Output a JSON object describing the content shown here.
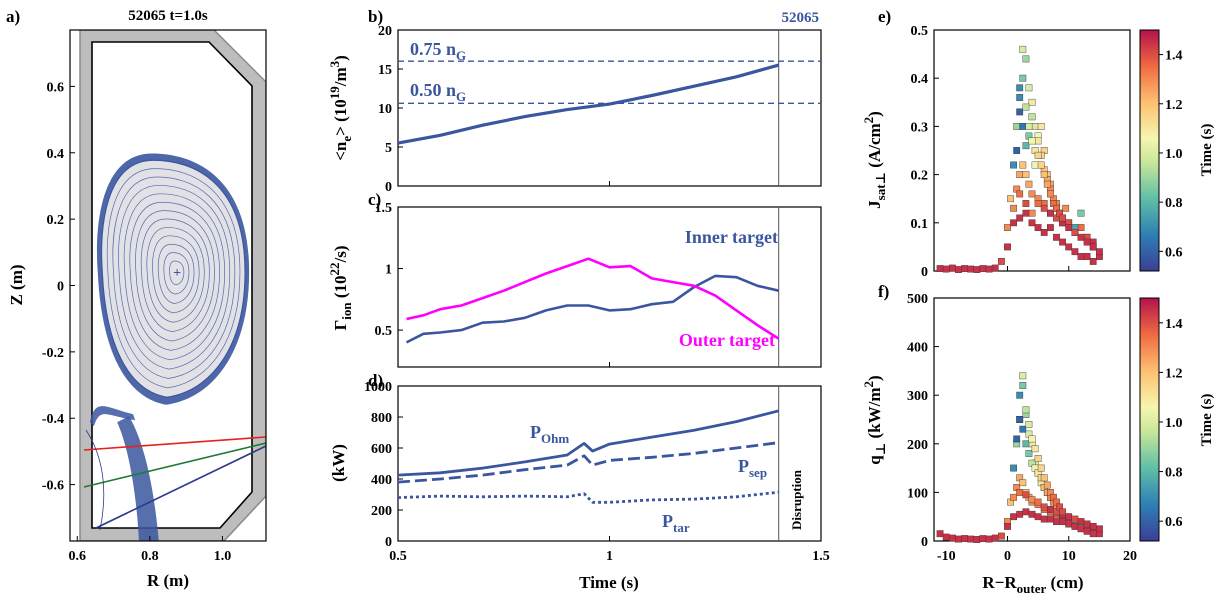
{
  "colors": {
    "blue": "#3b56a0",
    "magenta": "#ff00ff",
    "plasma_fill": "#e2e2e6",
    "wall_gray": "#bdbdbd",
    "line_red": "#e8211d",
    "line_green": "#1e7b33",
    "line_navy": "#2b3a8c"
  },
  "panels": {
    "a": {
      "label": "a)",
      "title": "52065 t=1.0s",
      "xlabel": "R (m)",
      "ylabel": "Z (m)",
      "xticks": [
        "0.6",
        "0.8",
        "1.0"
      ],
      "yticks": [
        "0.6",
        "0.4",
        "0.2",
        "0",
        "-0.2",
        "-0.4",
        "-0.6"
      ]
    },
    "b": {
      "label": "b)",
      "shot": "52065",
      "ylabel_main": "<n",
      "ylabel_sub": "e",
      "ylabel_rest": "> (10",
      "ylabel_sup": "19",
      "ylabel_unit": "/m",
      "ylabel_sup2": "3",
      "ylabel_end": ")",
      "ng075": "0.75 n",
      "ng050": "0.50 n",
      "ng_sub": "G",
      "yticks": [
        "0",
        "5",
        "10",
        "15",
        "20"
      ]
    },
    "c": {
      "label": "c)",
      "ylabel_main": "Γ",
      "ylabel_sub": "ion",
      "ylabel_rest": " (10",
      "ylabel_sup": "22",
      "ylabel_end": "/s)",
      "inner_label": "Inner target",
      "outer_label": "Outer target",
      "yticks": [
        "0.5",
        "1",
        "1.5"
      ]
    },
    "d": {
      "label": "d)",
      "ylabel": "(kW)",
      "pohm": "P",
      "pohm_sub": "Ohm",
      "psep": "P",
      "psep_sub": "sep",
      "ptar": "P",
      "ptar_sub": "tar",
      "disruption": "Disruption",
      "xlabel": "Time (s)",
      "yticks": [
        "0",
        "200",
        "400",
        "600",
        "800",
        "1000"
      ],
      "xticks": [
        "0.5",
        "1",
        "1.5"
      ]
    },
    "e": {
      "label": "e)",
      "ylabel_main": "J",
      "ylabel_sub": "sat⊥",
      "ylabel_rest": " (A/cm",
      "ylabel_sup": "2",
      "ylabel_end": ")",
      "yticks": [
        "0",
        "0.1",
        "0.2",
        "0.3",
        "0.4",
        "0.5"
      ],
      "cbar_label": "Time (s)",
      "cbar_ticks": [
        "0.6",
        "0.8",
        "1.0",
        "1.2",
        "1.4"
      ]
    },
    "f": {
      "label": "f)",
      "ylabel_main": "q",
      "ylabel_sub": "⊥",
      "ylabel_rest": " (kW/m",
      "ylabel_sup": "2",
      "ylabel_end": ")",
      "xlabel_main": "R−R",
      "xlabel_sub": "outer",
      "xlabel_end": " (cm)",
      "yticks": [
        "0",
        "100",
        "200",
        "300",
        "400",
        "500"
      ],
      "xticks": [
        "-10",
        "0",
        "10",
        "20"
      ],
      "cbar_label": "Time (s)",
      "cbar_ticks": [
        "0.6",
        "0.8",
        "1.0",
        "1.2",
        "1.4"
      ]
    }
  },
  "chart_data": [
    {
      "type": "diagram",
      "panel": "a",
      "xlim": [
        0.58,
        1.12
      ],
      "ylim": [
        -0.77,
        0.77
      ],
      "magnetic_axis": [
        0.875,
        0.04
      ],
      "x_point": [
        0.765,
        -0.4
      ]
    },
    {
      "type": "line",
      "panel": "b",
      "xlim": [
        0.5,
        1.5
      ],
      "ylim": [
        0,
        20
      ],
      "hlines": [
        {
          "name": "0.75 nG",
          "y": 16.0
        },
        {
          "name": "0.50 nG",
          "y": 10.6
        }
      ],
      "vline": 1.4,
      "x": [
        0.5,
        0.6,
        0.7,
        0.8,
        0.9,
        1.0,
        1.1,
        1.2,
        1.3,
        1.4
      ],
      "values": [
        5.5,
        6.5,
        7.8,
        8.9,
        9.8,
        10.5,
        11.6,
        12.8,
        14.0,
        15.5
      ]
    },
    {
      "type": "line",
      "panel": "c",
      "xlim": [
        0.5,
        1.5
      ],
      "ylim": [
        0.2,
        1.5
      ],
      "series": [
        {
          "name": "Inner target",
          "x": [
            0.52,
            0.56,
            0.6,
            0.65,
            0.7,
            0.75,
            0.8,
            0.85,
            0.9,
            0.95,
            1.0,
            1.05,
            1.1,
            1.15,
            1.2,
            1.25,
            1.3,
            1.35,
            1.4
          ],
          "values": [
            0.4,
            0.47,
            0.48,
            0.5,
            0.56,
            0.57,
            0.6,
            0.66,
            0.7,
            0.7,
            0.66,
            0.67,
            0.71,
            0.73,
            0.85,
            0.94,
            0.93,
            0.86,
            0.82
          ]
        },
        {
          "name": "Outer target",
          "x": [
            0.52,
            0.56,
            0.6,
            0.65,
            0.7,
            0.75,
            0.8,
            0.85,
            0.9,
            0.95,
            1.0,
            1.05,
            1.1,
            1.15,
            1.2,
            1.25,
            1.3,
            1.35,
            1.4
          ],
          "values": [
            0.59,
            0.62,
            0.67,
            0.7,
            0.76,
            0.82,
            0.89,
            0.96,
            1.02,
            1.08,
            1.01,
            1.02,
            0.92,
            0.89,
            0.86,
            0.78,
            0.66,
            0.54,
            0.43
          ]
        }
      ]
    },
    {
      "type": "line",
      "panel": "d",
      "xlim": [
        0.5,
        1.5
      ],
      "ylim": [
        0,
        1000
      ],
      "vline": 1.4,
      "series": [
        {
          "name": "P_Ohm",
          "x": [
            0.5,
            0.6,
            0.7,
            0.8,
            0.9,
            0.94,
            0.96,
            1.0,
            1.1,
            1.2,
            1.3,
            1.4
          ],
          "values": [
            425,
            440,
            470,
            510,
            555,
            630,
            580,
            625,
            670,
            715,
            770,
            840
          ]
        },
        {
          "name": "P_sep",
          "x": [
            0.5,
            0.6,
            0.7,
            0.8,
            0.9,
            0.94,
            0.96,
            1.0,
            1.1,
            1.2,
            1.3,
            1.4
          ],
          "values": [
            380,
            400,
            425,
            460,
            490,
            550,
            490,
            520,
            540,
            565,
            600,
            635
          ]
        },
        {
          "name": "P_tar",
          "x": [
            0.5,
            0.6,
            0.7,
            0.8,
            0.9,
            0.94,
            0.96,
            1.0,
            1.1,
            1.2,
            1.3,
            1.4
          ],
          "values": [
            280,
            290,
            285,
            290,
            285,
            305,
            250,
            250,
            265,
            270,
            285,
            315
          ]
        }
      ]
    },
    {
      "type": "scatter",
      "panel": "e",
      "xlim": [
        -12,
        20
      ],
      "ylim": [
        0,
        0.5
      ],
      "color_range": [
        0.52,
        1.5
      ],
      "x": [
        -11,
        -10,
        -9,
        -8,
        -7,
        -6,
        -5,
        -4,
        -3,
        -2,
        -1,
        0,
        0.5,
        1,
        1.5,
        2,
        2.5,
        3,
        3.5,
        4,
        4.5,
        5,
        5.5,
        6,
        6.5,
        7,
        7.5,
        8,
        8.5,
        9,
        9.5,
        10,
        11,
        12,
        13,
        14,
        15,
        1.5,
        2,
        2.5,
        3,
        3.5,
        4,
        4.5,
        5,
        5.5,
        6,
        6.5,
        7,
        1.5,
        2,
        2.5,
        3,
        3.5,
        4,
        5,
        6,
        7,
        8,
        9,
        10,
        11,
        12,
        13,
        14,
        1,
        2,
        3,
        4,
        5,
        6,
        7,
        8,
        9,
        10,
        11,
        12,
        13,
        14,
        15,
        2,
        2.5,
        3,
        3.5,
        4,
        4.5,
        5,
        5.5,
        6,
        6.5,
        7,
        7.5,
        8,
        8.5,
        9,
        0,
        1,
        2,
        3,
        4,
        5,
        6,
        7,
        8,
        9,
        10,
        11,
        12,
        13,
        14
      ],
      "values": [
        0.005,
        0.004,
        0.006,
        0.003,
        0.005,
        0.004,
        0.003,
        0.005,
        0.004,
        0.006,
        0.02,
        0.09,
        0.15,
        0.22,
        0.3,
        0.38,
        0.46,
        0.44,
        0.38,
        0.35,
        0.3,
        0.28,
        0.3,
        0.25,
        0.2,
        0.18,
        0.15,
        0.14,
        0.12,
        0.1,
        0.13,
        0.1,
        0.08,
        0.09,
        0.07,
        0.05,
        0.03,
        0.25,
        0.33,
        0.3,
        0.26,
        0.28,
        0.32,
        0.22,
        0.27,
        0.24,
        0.21,
        0.19,
        0.17,
        0.17,
        0.2,
        0.22,
        0.2,
        0.18,
        0.16,
        0.15,
        0.14,
        0.12,
        0.13,
        0.11,
        0.1,
        0.09,
        0.12,
        0.07,
        0.06,
        0.13,
        0.16,
        0.14,
        0.12,
        0.14,
        0.13,
        0.12,
        0.11,
        0.1,
        0.09,
        0.08,
        0.07,
        0.06,
        0.05,
        0.04,
        0.36,
        0.4,
        0.34,
        0.3,
        0.27,
        0.25,
        0.24,
        0.22,
        0.2,
        0.18,
        0.16,
        0.14,
        0.13,
        0.12,
        0.11,
        0.05,
        0.1,
        0.11,
        0.12,
        0.1,
        0.09,
        0.08,
        0.09,
        0.07,
        0.06,
        0.05,
        0.04,
        0.03,
        0.03,
        0.02
      ],
      "times": [
        1.45,
        1.45,
        1.45,
        1.45,
        1.45,
        1.45,
        1.45,
        1.45,
        1.45,
        1.45,
        1.4,
        1.3,
        1.2,
        0.7,
        0.9,
        0.7,
        1.0,
        0.9,
        1.0,
        1.1,
        1.0,
        1.05,
        1.1,
        1.15,
        1.2,
        1.25,
        1.3,
        1.3,
        1.35,
        1.35,
        1.3,
        1.4,
        1.4,
        1.35,
        0.7,
        1.45,
        1.45,
        0.6,
        0.6,
        0.65,
        0.8,
        0.85,
        0.95,
        1.05,
        1.1,
        1.15,
        1.2,
        1.25,
        1.3,
        1.3,
        1.25,
        1.2,
        1.2,
        1.25,
        1.3,
        1.3,
        1.35,
        1.35,
        1.4,
        1.4,
        1.4,
        0.75,
        0.85,
        1.4,
        1.45,
        1.3,
        1.35,
        1.4,
        1.3,
        1.35,
        1.4,
        1.45,
        1.4,
        1.45,
        1.45,
        1.4,
        1.45,
        1.45,
        1.45,
        1.45,
        0.7,
        0.85,
        0.95,
        1.0,
        1.05,
        1.1,
        1.15,
        1.15,
        1.2,
        1.25,
        1.3,
        1.35,
        1.35,
        1.4,
        1.4,
        1.45,
        1.45,
        1.45,
        1.45,
        1.45,
        1.45,
        1.45,
        1.45,
        1.45,
        1.45,
        1.45,
        1.45,
        1.45,
        1.45,
        1.45
      ]
    },
    {
      "type": "scatter",
      "panel": "f",
      "xlim": [
        -12,
        20
      ],
      "ylim": [
        0,
        500
      ],
      "color_range": [
        0.52,
        1.5
      ],
      "x": [
        -11,
        -10,
        -9,
        -8,
        -7,
        -6,
        -5,
        -4,
        -3,
        -2,
        -1,
        0,
        0.5,
        1,
        1.5,
        2,
        2.5,
        3,
        3.5,
        4,
        4.5,
        5,
        5.5,
        6,
        6.5,
        7,
        7.5,
        8,
        8.5,
        9,
        9.5,
        10,
        11,
        12,
        13,
        14,
        15,
        1.5,
        2,
        2.5,
        3,
        3.5,
        4,
        4.5,
        5,
        5.5,
        6,
        6.5,
        7,
        1.5,
        2,
        2.5,
        3,
        3.5,
        4,
        5,
        6,
        7,
        8,
        9,
        10,
        11,
        12,
        13,
        14,
        1,
        2,
        3,
        4,
        5,
        6,
        7,
        8,
        9,
        10,
        11,
        12,
        13,
        14,
        15,
        2,
        2.5,
        3,
        3.5,
        4,
        4.5,
        5,
        5.5,
        6,
        6.5,
        7,
        7.5,
        8,
        8.5,
        9,
        0,
        1,
        2,
        3,
        4,
        5,
        6,
        7,
        8,
        9,
        10,
        11,
        12,
        13,
        14
      ],
      "values": [
        15,
        8,
        6,
        4,
        5,
        4,
        3,
        5,
        4,
        6,
        10,
        40,
        80,
        150,
        200,
        250,
        340,
        260,
        220,
        200,
        160,
        140,
        120,
        110,
        100,
        90,
        80,
        70,
        60,
        55,
        50,
        45,
        35,
        30,
        25,
        20,
        15,
        210,
        250,
        230,
        200,
        180,
        160,
        150,
        140,
        130,
        110,
        100,
        90,
        110,
        130,
        120,
        100,
        90,
        80,
        75,
        65,
        60,
        55,
        50,
        45,
        40,
        35,
        30,
        25,
        90,
        100,
        95,
        85,
        80,
        70,
        65,
        60,
        55,
        50,
        45,
        40,
        35,
        30,
        25,
        300,
        320,
        270,
        240,
        210,
        190,
        170,
        150,
        130,
        115,
        100,
        90,
        80,
        70,
        60,
        30,
        50,
        55,
        60,
        55,
        50,
        45,
        45,
        40,
        40,
        35,
        30,
        25,
        20,
        15
      ],
      "times": [
        1.45,
        1.45,
        1.45,
        1.45,
        1.45,
        1.45,
        1.45,
        1.45,
        1.45,
        1.45,
        1.4,
        1.3,
        1.2,
        0.7,
        0.9,
        0.7,
        1.0,
        0.9,
        1.0,
        1.1,
        1.0,
        1.05,
        1.1,
        1.15,
        1.2,
        1.25,
        1.3,
        1.3,
        1.35,
        1.35,
        1.3,
        1.4,
        1.4,
        1.35,
        0.7,
        1.45,
        1.45,
        0.6,
        0.6,
        0.65,
        0.8,
        0.85,
        0.95,
        1.05,
        1.1,
        1.15,
        1.2,
        1.25,
        1.3,
        1.3,
        1.25,
        1.2,
        1.2,
        1.25,
        1.3,
        1.3,
        1.35,
        1.35,
        1.4,
        1.4,
        1.4,
        0.75,
        0.85,
        1.4,
        1.45,
        1.3,
        1.35,
        1.4,
        1.3,
        1.35,
        1.4,
        1.45,
        1.4,
        1.45,
        1.45,
        1.4,
        1.45,
        1.45,
        1.45,
        1.45,
        0.7,
        0.85,
        0.95,
        1.0,
        1.05,
        1.1,
        1.15,
        1.15,
        1.2,
        1.25,
        1.3,
        1.35,
        1.35,
        1.4,
        1.4,
        1.45,
        1.45,
        1.45,
        1.45,
        1.45,
        1.45,
        1.45,
        1.45,
        1.45,
        1.45,
        1.45,
        1.45,
        1.45,
        1.45,
        1.45
      ]
    }
  ]
}
